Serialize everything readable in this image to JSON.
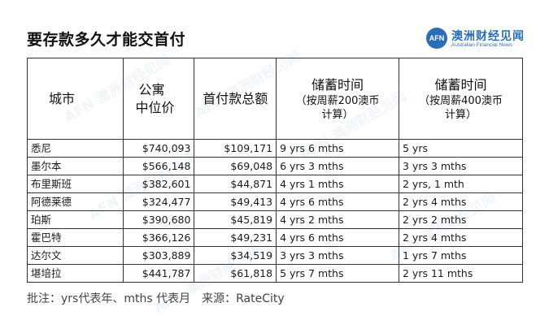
{
  "title": "要存款多久才能交首付",
  "logo": {
    "mark": "AFN",
    "name_cn": "澳洲财经见闻",
    "name_en": "Australian Financial News"
  },
  "table": {
    "headers": {
      "city": "城市",
      "median_line1": "公寓",
      "median_line2": "中位价",
      "deposit": "首付款总额",
      "save200_title": "储蓄时间",
      "save200_sub1": "（按周薪200澳币",
      "save200_sub2": "计算）",
      "save400_title": "储蓄时间",
      "save400_sub1": "（按周薪400澳币",
      "save400_sub2": "计算）"
    },
    "rows": [
      {
        "city": "悉尼",
        "median": "$740,093",
        "deposit": "$109,171",
        "save200": "9 yrs 6 mths",
        "save400": "5 yrs"
      },
      {
        "city": "墨尔本",
        "median": "$566,148",
        "deposit": "$69,048",
        "save200": "6 yrs 3 mths",
        "save400": "3 yrs 3 mths"
      },
      {
        "city": "布里斯班",
        "median": "$382,601",
        "deposit": "$44,871",
        "save200": "4 yrs 1 mths",
        "save400": "2 yrs, 1 mth"
      },
      {
        "city": "阿德莱德",
        "median": "$324,477",
        "deposit": "$49,413",
        "save200": "4 yrs 6 mths",
        "save400": "2 yrs 4 mths"
      },
      {
        "city": "珀斯",
        "median": "$390,680",
        "deposit": "$45,819",
        "save200": "4 yrs 2 mths",
        "save400": "2 yrs 2 mths"
      },
      {
        "city": "霍巴特",
        "median": "$366,126",
        "deposit": "$49,231",
        "save200": "4 yrs 6 mths",
        "save400": "2 yrs 4 mths"
      },
      {
        "city": "达尔文",
        "median": "$303,889",
        "deposit": "$34,519",
        "save200": "3 yrs 3 mths",
        "save400": "1 yrs 7 mths"
      },
      {
        "city": "堪培拉",
        "median": "$441,787",
        "deposit": "$61,818",
        "save200": "5 yrs 7 mths",
        "save400": "2 yrs 11 mths"
      }
    ]
  },
  "footnote": {
    "note": "批注：yrs代表年、mths 代表月",
    "source": "来源：RateCity"
  },
  "colors": {
    "brand": "#2a6fb5",
    "border": "#333333",
    "text": "#1a1a1a"
  }
}
